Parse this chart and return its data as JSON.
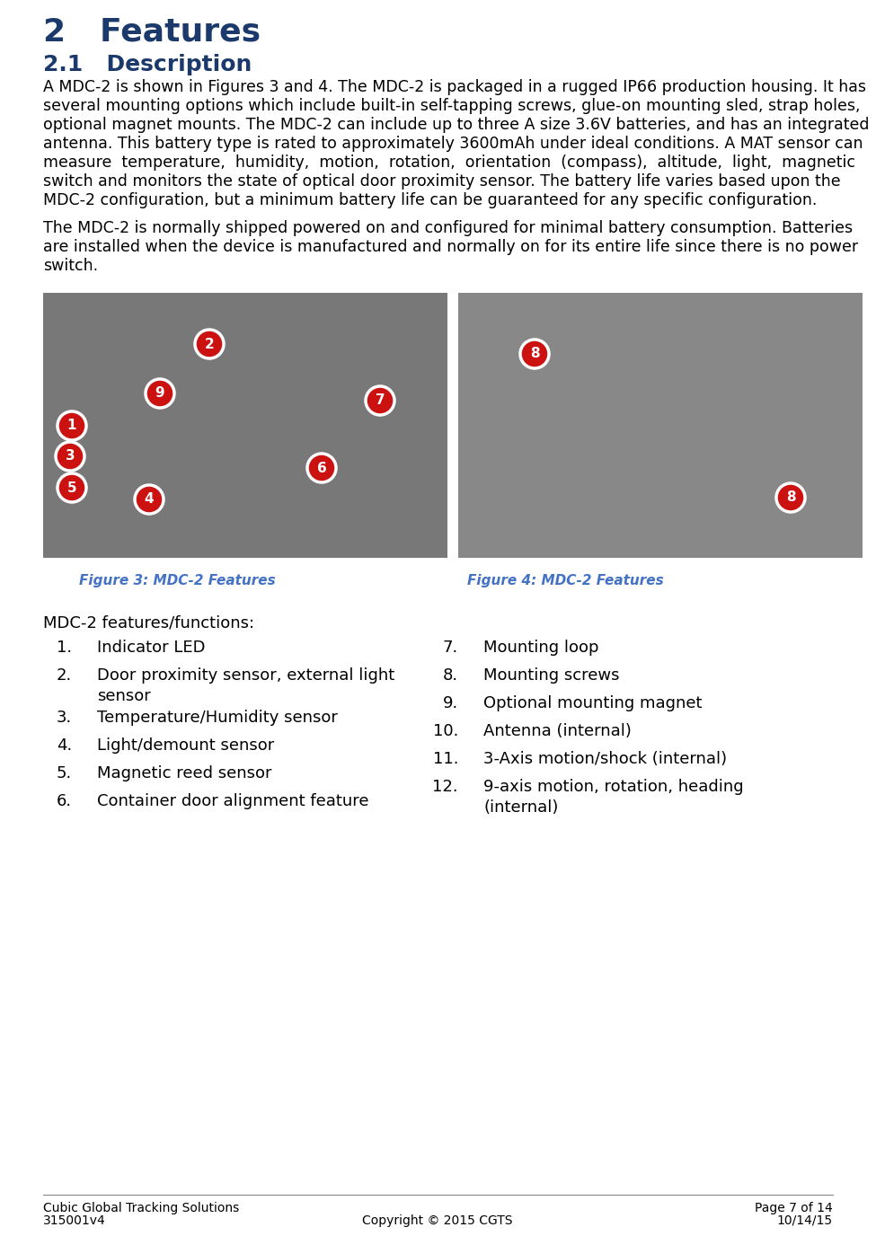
{
  "title": "2   Features",
  "title_color": "#1B3A6B",
  "title_fontsize": 26,
  "subtitle": "2.1   Description",
  "subtitle_fontsize": 18,
  "subtitle_color": "#1B3A6B",
  "body1_lines": [
    "A MDC-2 is shown in Figures 3 and 4. The MDC-2 is packaged in a rugged IP66 production housing. It has",
    "several mounting options which include built-in self-tapping screws, glue-on mounting sled, strap holes,",
    "optional magnet mounts. The MDC-2 can include up to three A size 3.6V batteries, and has an integrated",
    "antenna. This battery type is rated to approximately 3600mAh under ideal conditions. A MAT sensor can",
    "measure  temperature,  humidity,  motion,  rotation,  orientation  (compass),  altitude,  light,  magnetic",
    "switch and monitors the state of optical door proximity sensor. The battery life varies based upon the",
    "MDC-2 configuration, but a minimum battery life can be guaranteed for any specific configuration."
  ],
  "body2_lines": [
    "The MDC-2 is normally shipped powered on and configured for minimal battery consumption. Batteries",
    "are installed when the device is manufactured and normally on for its entire life since there is no power",
    "switch."
  ],
  "fig3_caption": "Figure 3: MDC-2 Features",
  "fig4_caption": "Figure 4: MDC-2 Features",
  "fig_caption_color": "#4472C4",
  "fig_caption_fontsize": 11,
  "features_title": "MDC-2 features/functions:",
  "features_title_fontsize": 13,
  "body_fontsize": 12.5,
  "features_fontsize": 13,
  "img1_color": "#787878",
  "img2_color": "#888888",
  "circle_fill": "#CC1111",
  "circle_edge": "#ffffff",
  "circle_text": "#ffffff",
  "background_color": "#ffffff",
  "text_color": "#000000",
  "footer_left_line1": "Cubic Global Tracking Solutions",
  "footer_left_line2": "315001v4",
  "footer_center": "Copyright © 2015 CGTS",
  "footer_right_line1": "Page 7 of 14",
  "footer_right_line2": "10/14/15",
  "footer_fontsize": 10
}
